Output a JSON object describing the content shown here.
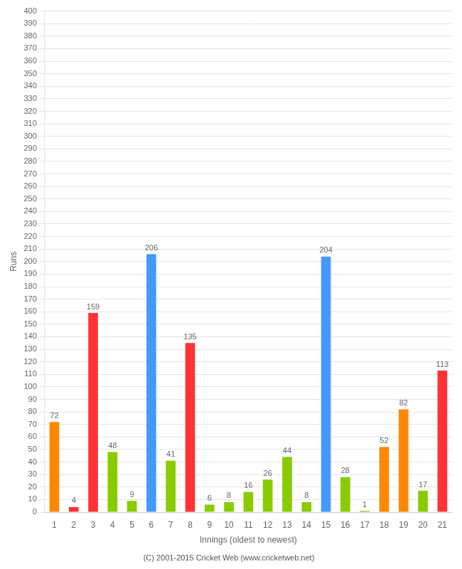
{
  "chart_data": {
    "type": "bar",
    "xlabel": "Innings (oldest to newest)",
    "ylabel": "Runs",
    "annotations": [
      "(C) 2001-2015 Cricket Web (www.cricketweb.net)"
    ],
    "categories": [
      "1",
      "2",
      "3",
      "4",
      "5",
      "6",
      "7",
      "8",
      "9",
      "10",
      "11",
      "12",
      "13",
      "14",
      "15",
      "16",
      "17",
      "18",
      "19",
      "20",
      "21"
    ],
    "values": [
      72,
      4,
      159,
      48,
      9,
      206,
      41,
      135,
      6,
      8,
      16,
      26,
      44,
      8,
      204,
      28,
      1,
      52,
      82,
      17,
      113
    ],
    "colors": [
      "#ff8800",
      "#ff3333",
      "#ff3333",
      "#88cc00",
      "#88cc00",
      "#4499ff",
      "#88cc00",
      "#ff3333",
      "#88cc00",
      "#88cc00",
      "#88cc00",
      "#88cc00",
      "#88cc00",
      "#88cc00",
      "#4499ff",
      "#88cc00",
      "#88cc00",
      "#ff8800",
      "#ff8800",
      "#88cc00",
      "#ff3333"
    ],
    "ylim": [
      0,
      400
    ],
    "yticks": [
      0,
      10,
      20,
      30,
      40,
      50,
      60,
      70,
      80,
      90,
      100,
      110,
      120,
      130,
      140,
      150,
      160,
      170,
      180,
      190,
      200,
      210,
      220,
      230,
      240,
      250,
      260,
      270,
      280,
      290,
      300,
      310,
      320,
      330,
      340,
      350,
      360,
      370,
      380,
      390,
      400
    ],
    "grid": "y",
    "data_labels": true
  }
}
